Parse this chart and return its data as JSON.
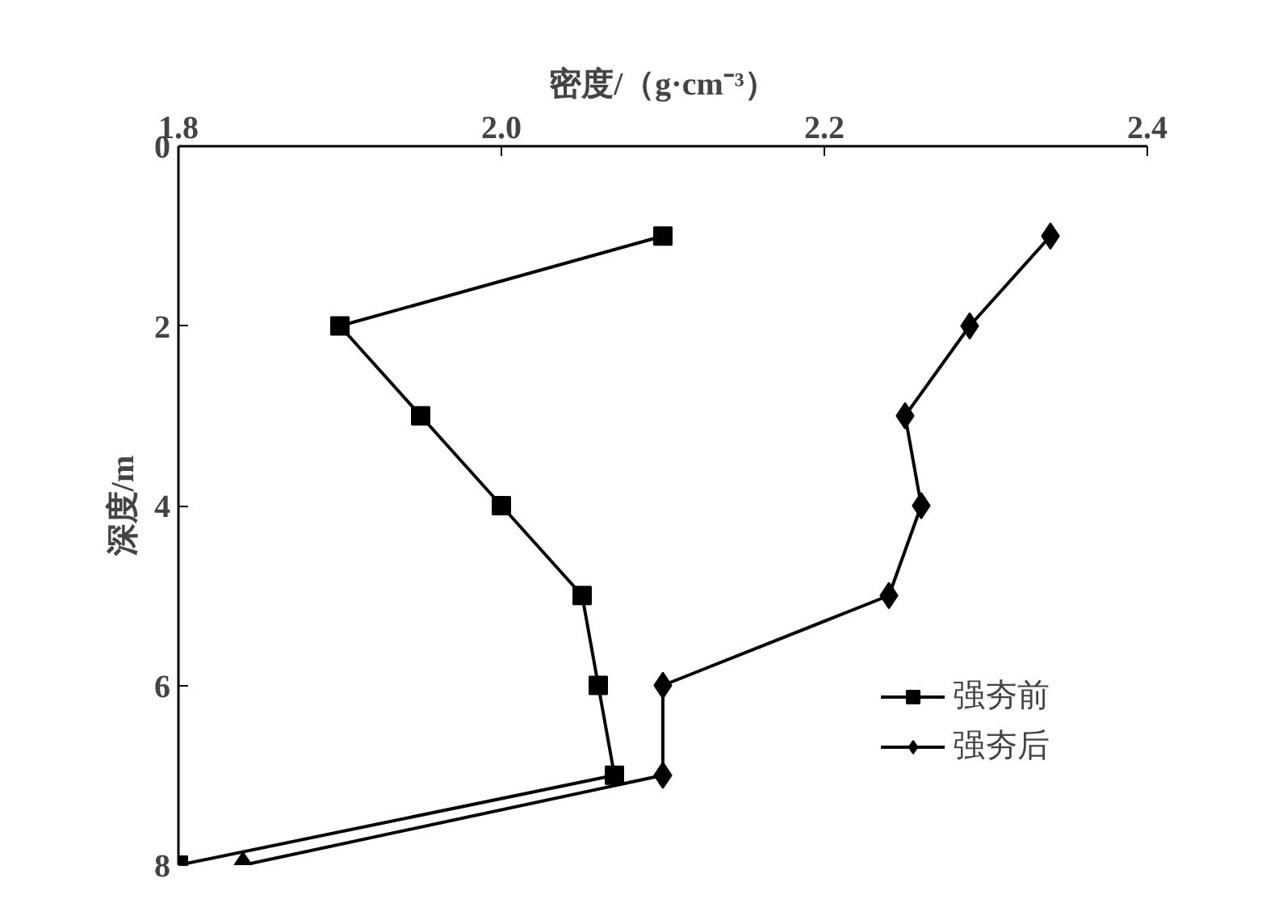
{
  "chart_data": {
    "type": "line",
    "xlabel": "密度/（g·cm⁻³）",
    "ylabel": "深度/m",
    "xlim": [
      1.8,
      2.4
    ],
    "xticks": [
      1.8,
      {
        "value": 2.0,
        "label": "2.0"
      },
      2.2,
      2.4
    ],
    "ylim": [
      8,
      0
    ],
    "yticks": [
      0,
      2,
      4,
      6,
      8
    ],
    "grid": false,
    "legend": "bottom right",
    "line_style": "solid",
    "series": [
      {
        "name": "强夯前",
        "color": "#000000",
        "marker": "square",
        "x": [
          2.1,
          1.9,
          1.95,
          2.0,
          2.05,
          2.06,
          2.07,
          1.8
        ],
        "values": [
          1,
          2,
          3,
          4,
          5,
          6,
          7,
          8
        ]
      },
      {
        "name": "强夯后",
        "color": "#000000",
        "marker": "diamond",
        "x": [
          2.34,
          2.29,
          2.25,
          2.26,
          2.24,
          2.1,
          2.1,
          1.84
        ],
        "values": [
          1,
          2,
          3,
          4,
          5,
          6,
          7,
          8
        ]
      }
    ]
  }
}
